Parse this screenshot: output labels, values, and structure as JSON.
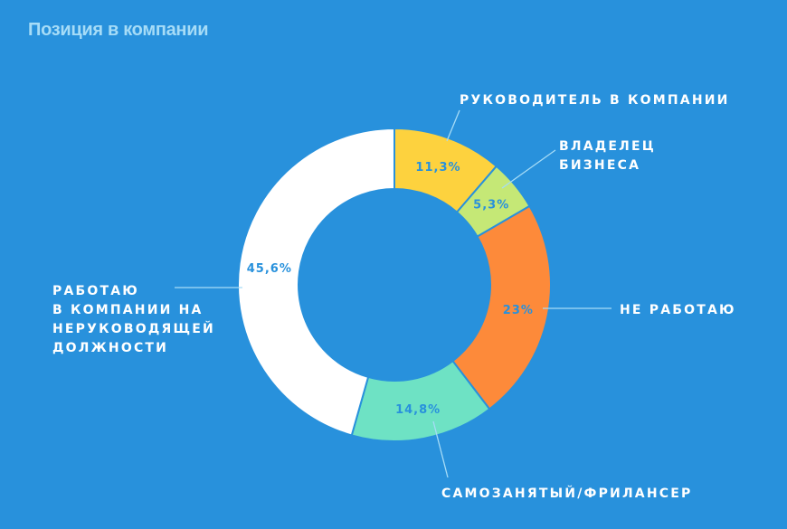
{
  "chart_data": {
    "type": "pie",
    "variant": "donut",
    "title": "Позиция в компании",
    "slices": [
      {
        "label": "Руководитель в компании",
        "display_lines": [
          "РУКОВОДИТЕЛЬ В КОМПАНИИ"
        ],
        "value": 11.3,
        "value_label": "11,3%",
        "color": "#fdd23e"
      },
      {
        "label": "Владелец бизнеса",
        "display_lines": [
          "ВЛАДЕЛЕЦ",
          "БИЗНЕСА"
        ],
        "value": 5.3,
        "value_label": "5,3%",
        "color": "#c5e876"
      },
      {
        "label": "Не работаю",
        "display_lines": [
          "НЕ РАБОТАЮ"
        ],
        "value": 23,
        "value_label": "23%",
        "color": "#fd8a3a"
      },
      {
        "label": "Самозанятый/фрилансер",
        "display_lines": [
          "САМОЗАНЯТЫЙ/ФРИЛАНСЕР"
        ],
        "value": 14.8,
        "value_label": "14,8%",
        "color": "#6ee2c4"
      },
      {
        "label": "Работаю в компании на неруководящей должности",
        "display_lines": [
          "РАБОТАЮ",
          "В КОМПАНИИ НА",
          "НЕРУКОВОДЯЩЕЙ",
          "ДОЛЖНОСТИ"
        ],
        "value": 45.6,
        "value_label": "45,6%",
        "color": "#ffffff"
      }
    ]
  }
}
